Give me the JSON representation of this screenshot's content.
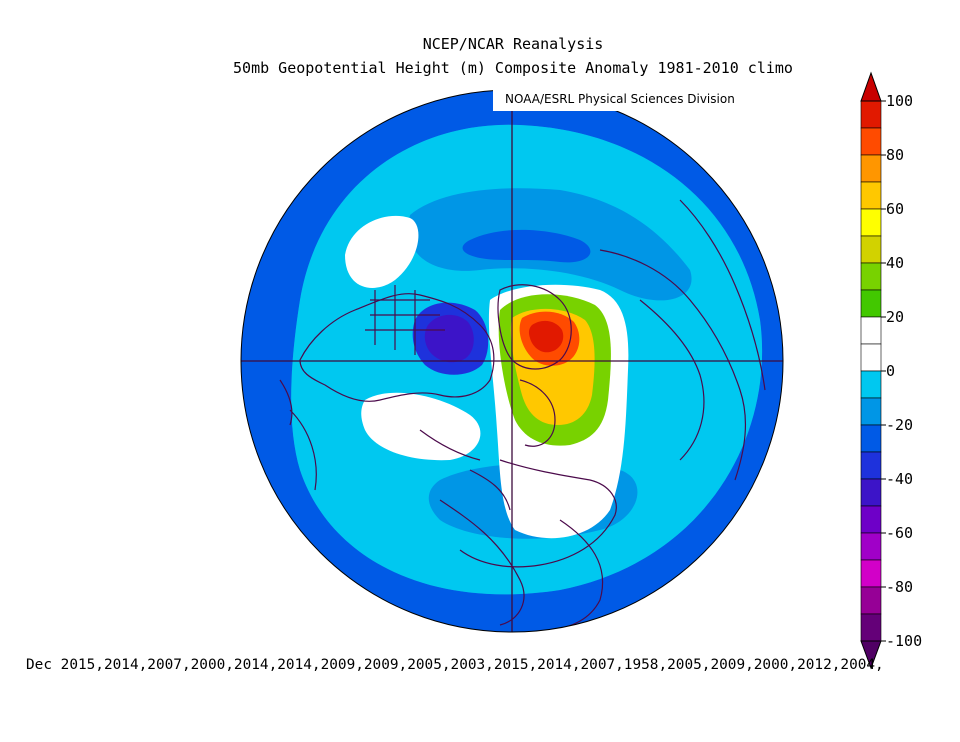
{
  "title": "NCEP/NCAR Reanalysis",
  "subtitle": "50mb Geopotential Height (m) Composite Anomaly 1981-2010 climo",
  "credit": "NOAA/ESRL Physical Sciences Division",
  "footer": "Dec 2015,2014,2007,2000,2014,2014,2009,2009,2005,2003,2015,2014,2007,1958,2005,2009,2000,2012,2004,",
  "colorbar": {
    "tick_labels": [
      "100",
      "80",
      "60",
      "40",
      "20",
      "0",
      "-20",
      "-40",
      "-60",
      "-80",
      "-100"
    ],
    "colors": [
      "#e11900",
      "#ff4b00",
      "#ff9600",
      "#ffc800",
      "#ffff00",
      "#d2d200",
      "#78d200",
      "#42c800",
      "#ffffff",
      "#ffffff",
      "#00c8f0",
      "#0096e6",
      "#005ae6",
      "#1e32dc",
      "#3c14c8",
      "#6e00c8",
      "#a000c8",
      "#d200c8",
      "#960096",
      "#640078"
    ],
    "top_triangle_color": "#c80000",
    "bottom_triangle_color": "#500064"
  },
  "map_colors": {
    "land_outline": "#4b0a4b",
    "grid": "#3c0a3c",
    "base": "#2078dc"
  }
}
